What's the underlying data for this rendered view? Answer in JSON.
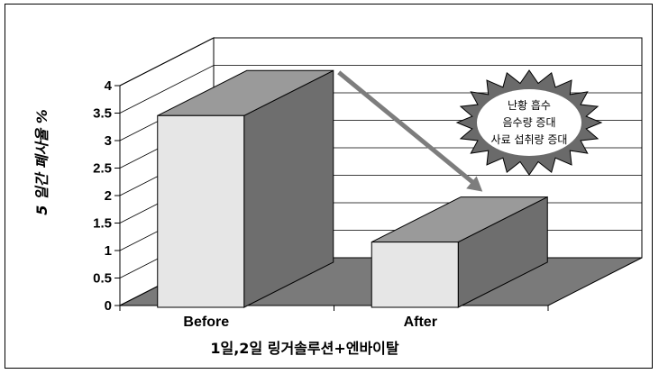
{
  "chart_data": {
    "type": "bar",
    "categories": [
      "Before",
      "After"
    ],
    "values": [
      3.7,
      1.4
    ],
    "ylabel": "5 일간 폐사율 %",
    "xlabel": "1일,2일 링거솔루션+엔바이탈",
    "ylim": [
      0,
      4
    ],
    "yticks": [
      "0",
      "0.5",
      "1",
      "1.5",
      "2",
      "2.5",
      "3",
      "3.5",
      "4"
    ],
    "grid": true,
    "annotation": {
      "lines": [
        "난황 흡수",
        "음수량 증대",
        "사료 섭취량 증대"
      ]
    },
    "colors": {
      "bar_front": "#e6e6e6",
      "bar_side": "#6e6e6e",
      "bar_top": "#9a9a9a",
      "floor": "#7a7a7a",
      "arrow": "#7d7d7d",
      "burst": "#6a6a6a"
    }
  }
}
